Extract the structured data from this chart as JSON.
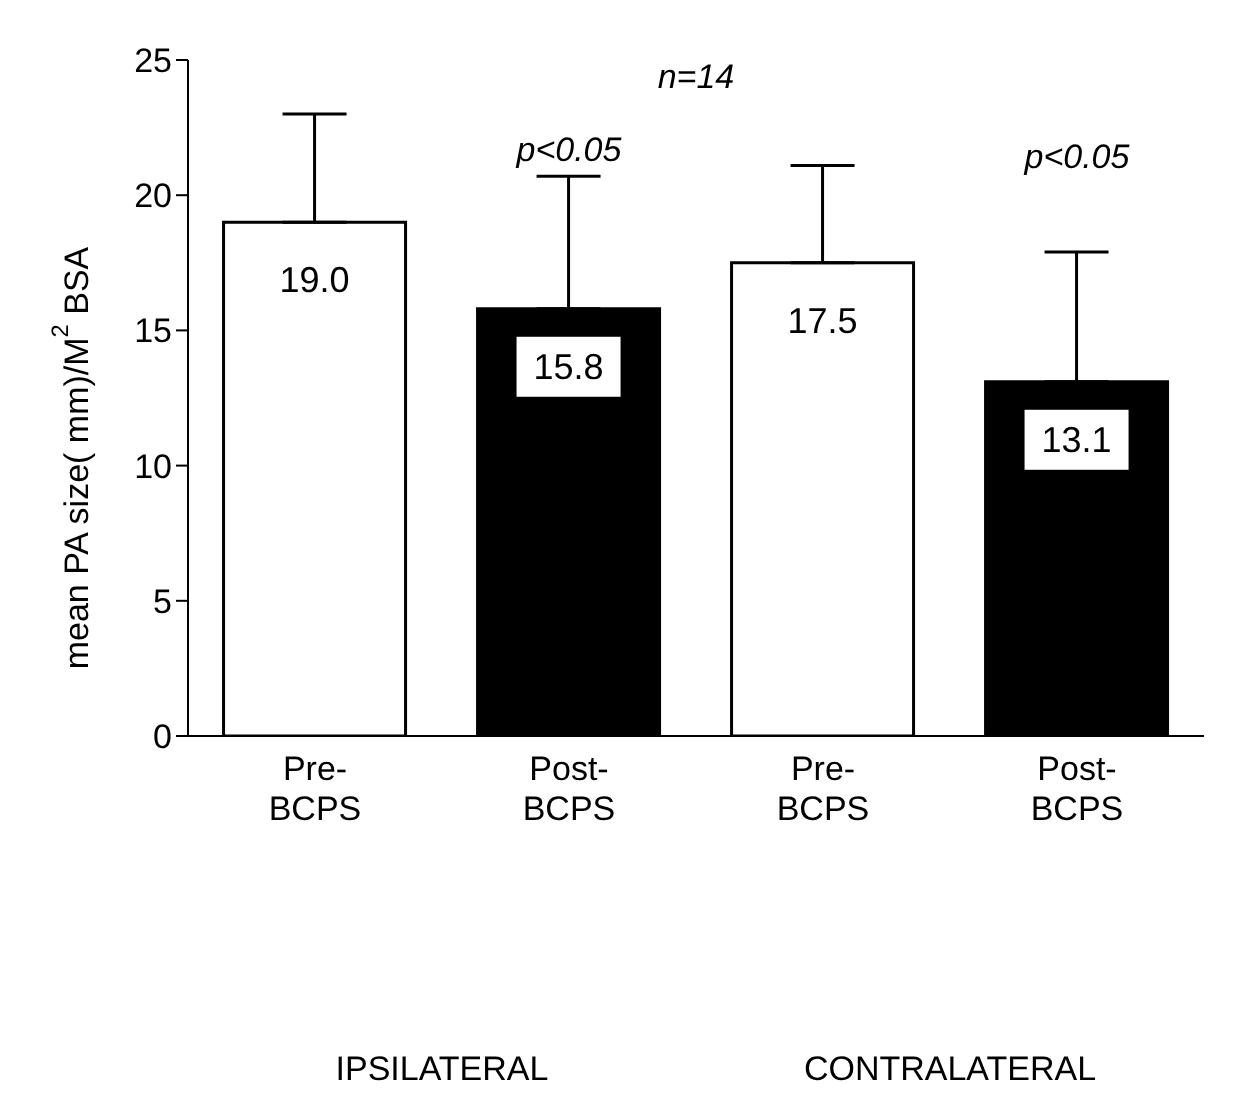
{
  "chart_data": {
    "type": "bar",
    "ylabel": "mean PA size( mm)/M$^{2}$ BSA",
    "categories": [
      "Pre-\nBCPS",
      "Post-\nBCPS",
      "Pre-\nBCPS",
      "Post-\nBCPS"
    ],
    "values": [
      19.0,
      15.8,
      17.5,
      13.1
    ],
    "colors": [
      "#ffffff",
      "#000000",
      "#ffffff",
      "#000000"
    ],
    "errors": [
      [
        19.0,
        23.0
      ],
      [
        15.8,
        20.7
      ],
      [
        17.5,
        21.1
      ],
      [
        13.1,
        17.9
      ]
    ],
    "value_labels": [
      "19.0",
      "15.8",
      "17.5",
      "13.1"
    ],
    "ylim": [
      0,
      25
    ],
    "yticks": [
      0,
      5,
      10,
      15,
      20,
      25
    ],
    "grid": false,
    "legend": false,
    "annotations": [
      "n=14",
      "p<0.05",
      "p<0.05",
      "IPSILATERAL",
      "CONTRALATERAL"
    ]
  }
}
